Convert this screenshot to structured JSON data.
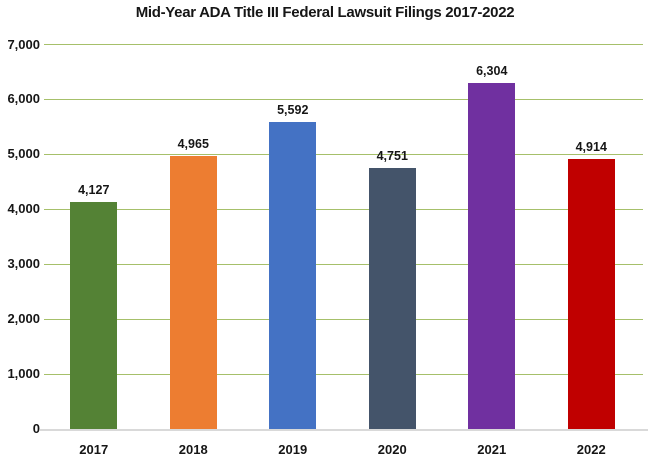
{
  "title": "Mid-Year ADA Title III Federal Lawsuit Filings 2017-2022",
  "chart_data": {
    "type": "bar",
    "title": "Mid-Year ADA Title III Federal Lawsuit Filings 2017-2022",
    "categories": [
      "2017",
      "2018",
      "2019",
      "2020",
      "2021",
      "2022"
    ],
    "values": [
      4127,
      4965,
      5592,
      4751,
      6304,
      4914
    ],
    "value_labels": [
      "4,127",
      "4,965",
      "5,592",
      "4,751",
      "6,304",
      "4,914"
    ],
    "bar_colors": [
      "#548235",
      "#ED7D31",
      "#4472C4",
      "#44546A",
      "#7030A0",
      "#C00000"
    ],
    "xlabel": "",
    "ylabel": "",
    "ylim": [
      0,
      7000
    ],
    "ytick_step": 1000,
    "ytick_labels": [
      "0",
      "1,000",
      "2,000",
      "3,000",
      "4,000",
      "5,000",
      "6,000",
      "7,000"
    ],
    "grid": "horizontal",
    "gridline_color": "#a6c06a",
    "axis_line_color": "#d9d9d9",
    "legend": "none",
    "background_color": "#ffffff",
    "text_color": "#161616"
  }
}
